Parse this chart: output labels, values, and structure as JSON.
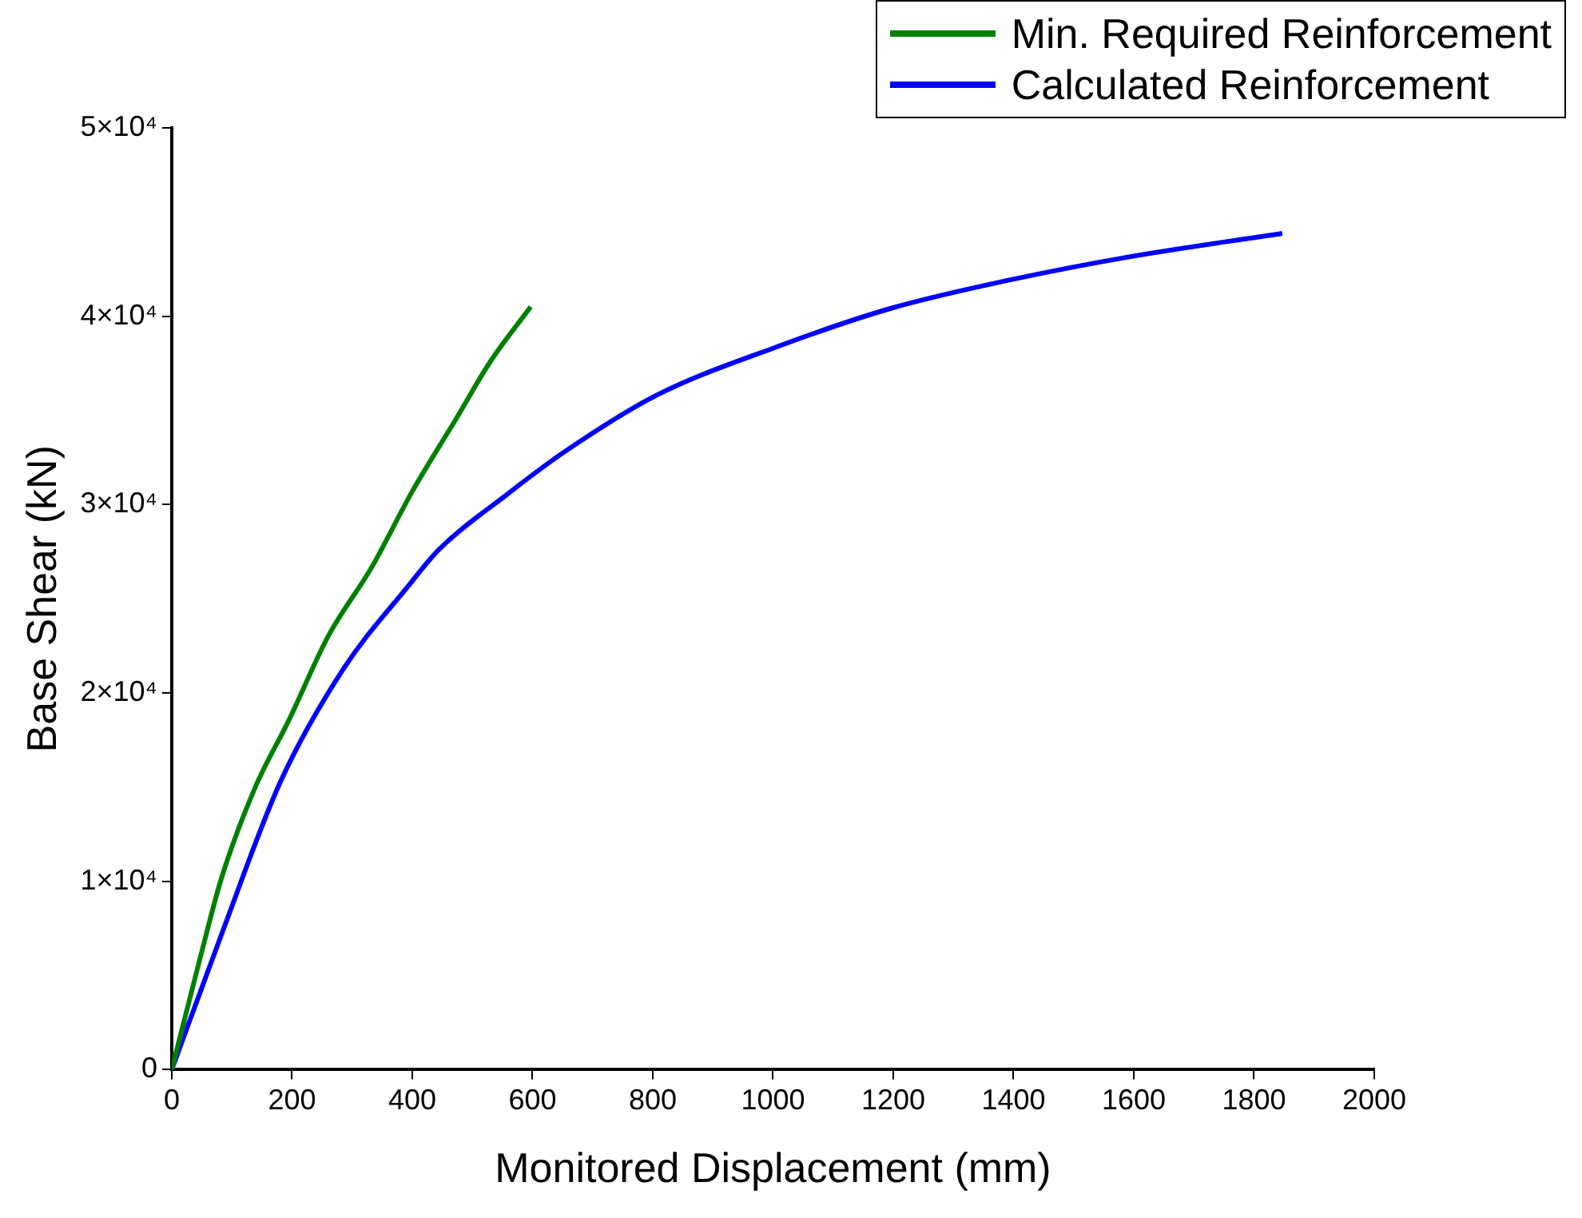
{
  "chart_data": {
    "type": "line",
    "xlabel": "Monitored Displacement (mm)",
    "ylabel": "Base Shear (kN)",
    "xlim": [
      0,
      2000
    ],
    "xticks": [
      0,
      200,
      400,
      600,
      800,
      1000,
      1200,
      1400,
      1600,
      1800,
      2000
    ],
    "ylim": [
      0,
      50000
    ],
    "yticks": [
      {
        "value": 0,
        "label": "0"
      },
      {
        "value": 10000,
        "label": "1×10⁴"
      },
      {
        "value": 20000,
        "label": "2×10⁴"
      },
      {
        "value": 30000,
        "label": "3×10⁴"
      },
      {
        "value": 40000,
        "label": "4×10⁴"
      },
      {
        "value": 50000,
        "label": "5×10⁴"
      }
    ],
    "grid": false,
    "legend": "top right",
    "marker": "none",
    "line_style": "solid",
    "series": [
      {
        "name": "Min. Required Reinforcement",
        "color": "#008000",
        "x": [
          0,
          47,
          83,
          139,
          194,
          260,
          333,
          400,
          472,
          530,
          597
        ],
        "values": [
          0,
          5900,
          10200,
          15000,
          18500,
          23000,
          26700,
          30700,
          34500,
          37600,
          40500
        ]
      },
      {
        "name": "Calculated Reinforcement",
        "color": "#0000ff",
        "x": [
          0,
          83,
          181,
          286,
          394,
          444,
          556,
          653,
          806,
          1000,
          1194,
          1361,
          1583,
          1847
        ],
        "values": [
          0,
          7200,
          15300,
          21300,
          25700,
          27600,
          30500,
          32800,
          35800,
          38300,
          40400,
          41700,
          43100,
          44400
        ]
      }
    ]
  }
}
